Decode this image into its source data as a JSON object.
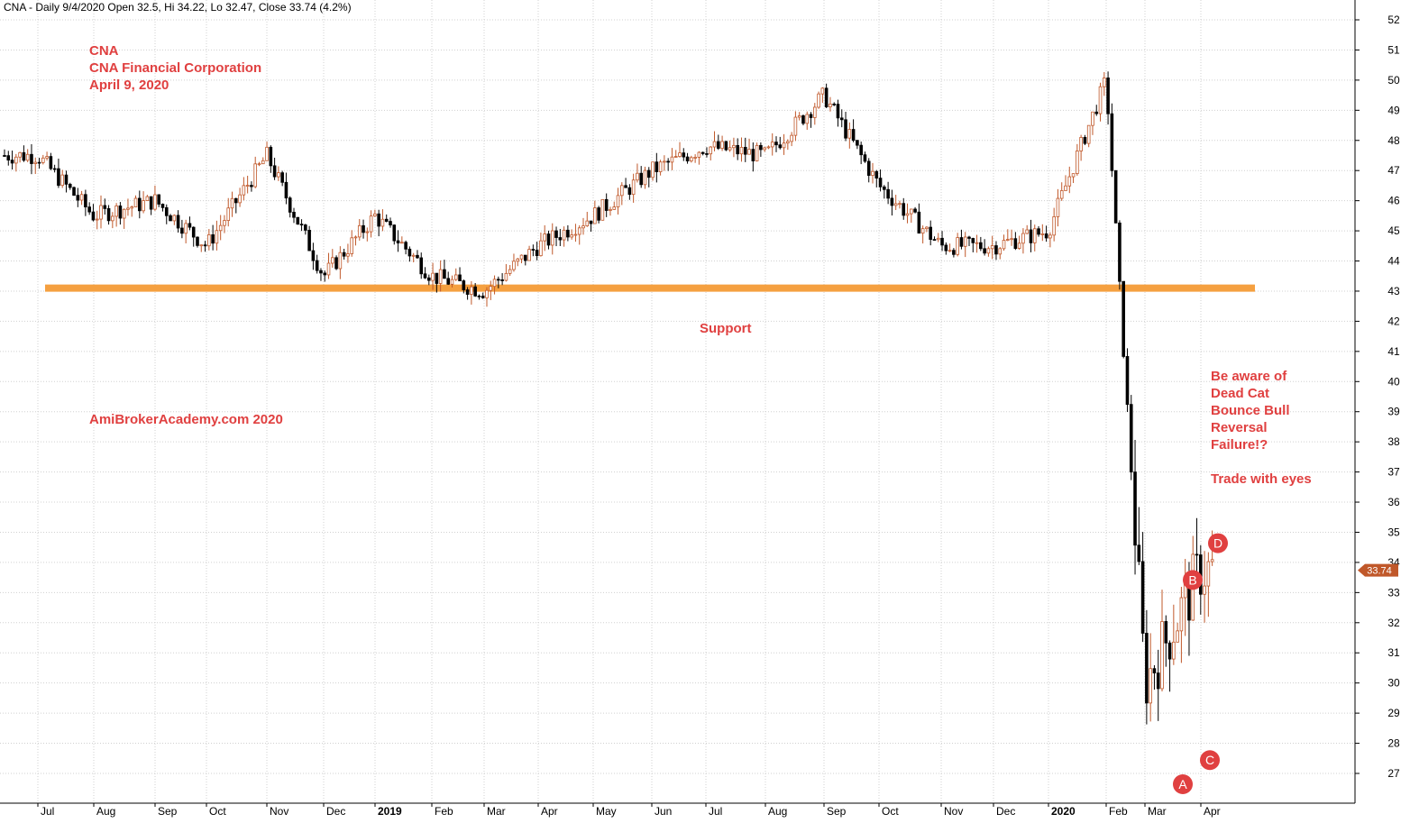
{
  "header": "CNA - Daily 9/4/2020 Open 32.5, Hi 34.22, Lo 32.47, Close 33.74 (4.2%)",
  "title_lines": [
    "CNA",
    "CNA Financial Corporation",
    "April 9, 2020"
  ],
  "watermark": "AmiBrokerAcademy.com   2020",
  "support_label": "Support",
  "note_lines": [
    "Be aware of",
    "Dead Cat",
    "Bounce Bull",
    "Reversal",
    "Failure!?"
  ],
  "note2": "Trade with eyes",
  "points": [
    "A",
    "B",
    "C",
    "D"
  ],
  "last_price_badge": "33.74",
  "colors": {
    "up": "#c0582a",
    "down": "#000000",
    "support": "#f5a040",
    "annotation": "#e04040",
    "badge": "#c0582a",
    "grid": "#d0d0d0"
  },
  "chart_data": {
    "type": "candlestick",
    "ticker": "CNA",
    "timeframe": "Daily",
    "last_bar": {
      "date": "9/4/2020",
      "open": 32.5,
      "high": 34.22,
      "low": 32.47,
      "close": 33.74,
      "change_pct": 4.2
    },
    "ylim": [
      26,
      52
    ],
    "y_ticks": [
      27,
      28,
      29,
      30,
      31,
      32,
      33,
      34,
      35,
      36,
      37,
      38,
      39,
      40,
      41,
      42,
      43,
      44,
      45,
      46,
      47,
      48,
      49,
      50,
      51,
      52
    ],
    "x_tick_labels": [
      "Jul",
      "Aug",
      "Sep",
      "Oct",
      "Nov",
      "Dec",
      "2019",
      "Feb",
      "Mar",
      "Apr",
      "May",
      "Jun",
      "Jul",
      "Aug",
      "Sep",
      "Oct",
      "Nov",
      "Dec",
      "2020",
      "Feb",
      "Mar",
      "Apr"
    ],
    "bold_x_labels": [
      "2019",
      "2020"
    ],
    "support_level": 43.1,
    "approx_monthly_path": [
      {
        "month": "Jul 2018",
        "price": 47.5
      },
      {
        "month": "Aug 2018",
        "price": 45.5
      },
      {
        "month": "Sep 2018",
        "price": 46.0
      },
      {
        "month": "Oct 2018",
        "price": 44.5
      },
      {
        "month": "Nov 2018",
        "price": 47.5
      },
      {
        "month": "Dec 2018",
        "price": 43.5
      },
      {
        "month": "Jan 2019",
        "price": 45.5
      },
      {
        "month": "Feb 2019",
        "price": 43.5
      },
      {
        "month": "Mar 2019",
        "price": 43.0
      },
      {
        "month": "Apr 2019",
        "price": 44.5
      },
      {
        "month": "May 2019",
        "price": 45.5
      },
      {
        "month": "Jun 2019",
        "price": 47.0
      },
      {
        "month": "Jul 2019",
        "price": 47.8
      },
      {
        "month": "Aug 2019",
        "price": 47.5
      },
      {
        "month": "Sep 2019",
        "price": 49.5
      },
      {
        "month": "Oct 2019",
        "price": 46.5
      },
      {
        "month": "Nov 2019",
        "price": 44.5
      },
      {
        "month": "Dec 2019",
        "price": 44.5
      },
      {
        "month": "Jan 2020",
        "price": 45.0
      },
      {
        "month": "Feb 2020",
        "price": 50.0
      },
      {
        "month": "Mar 2020",
        "price": 30.0
      },
      {
        "month": "Apr 2020",
        "price": 33.74
      }
    ],
    "labeled_points": [
      {
        "label": "A",
        "price": 27.0
      },
      {
        "label": "B",
        "price": 33.0
      },
      {
        "label": "C",
        "price": 27.8
      },
      {
        "label": "D",
        "price": 34.22
      }
    ]
  }
}
